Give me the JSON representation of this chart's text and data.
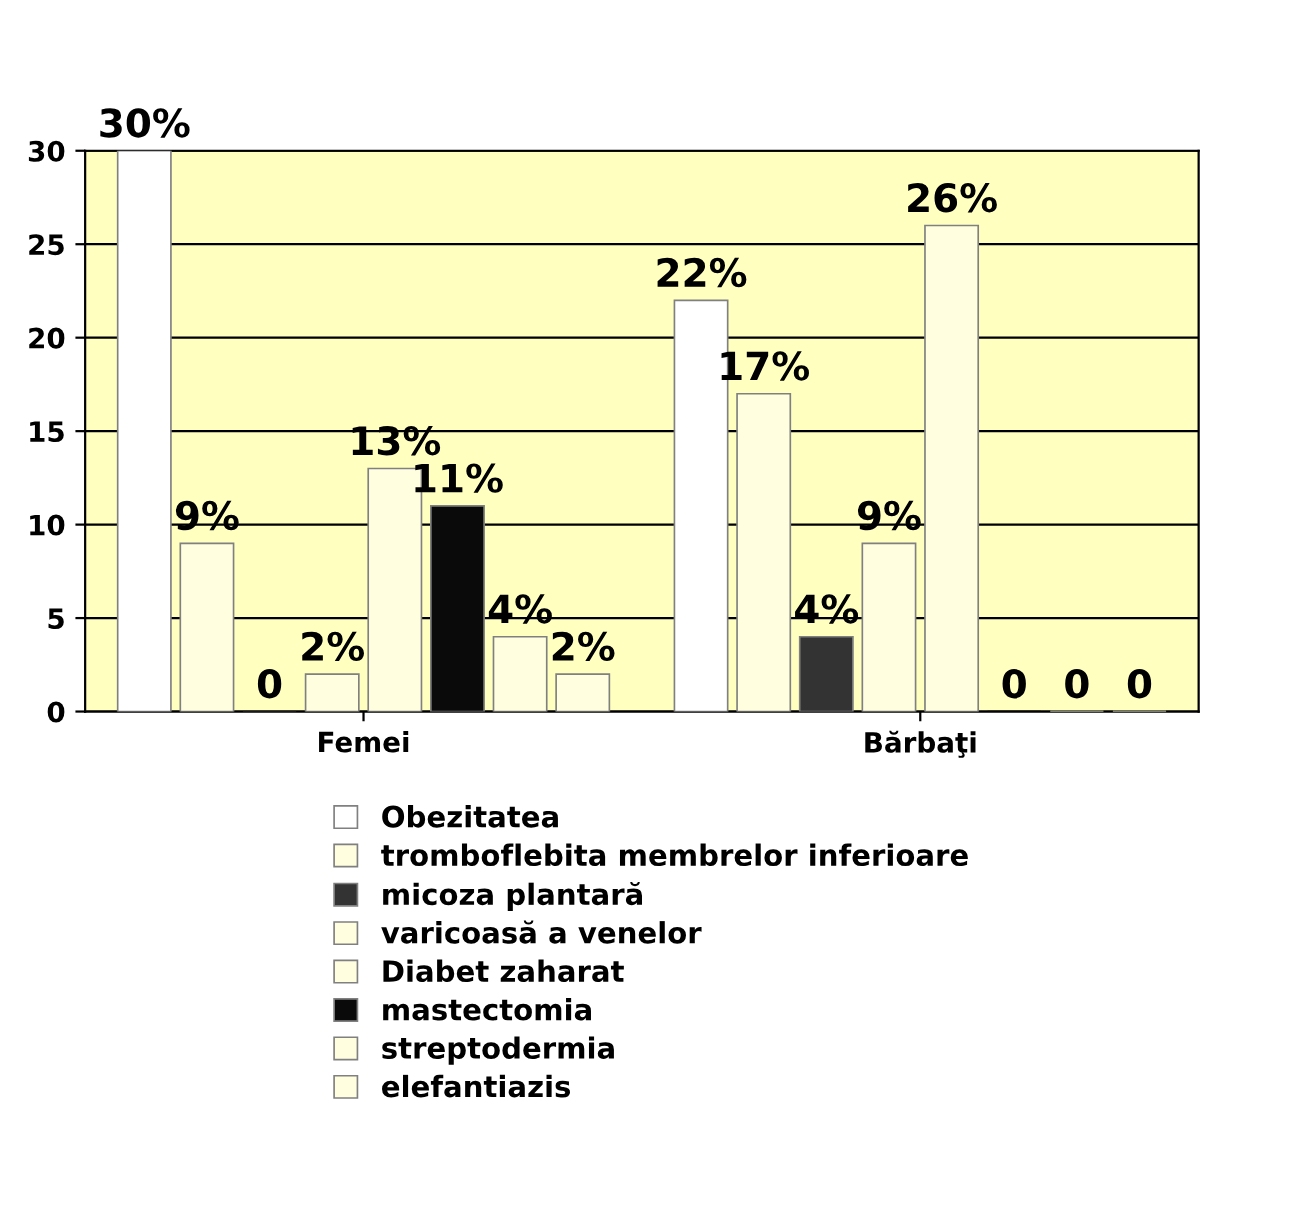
{
  "chart_data": {
    "type": "bar",
    "categories": [
      "Femei",
      "Bărbaţi"
    ],
    "series": [
      {
        "name": "Obezitatea",
        "color": "#ffffff",
        "values": [
          30,
          22
        ],
        "value_labels": [
          "30%",
          "22%"
        ]
      },
      {
        "name": "tromboflebita membrelor inferioare",
        "color": "#ffffe0",
        "values": [
          9,
          17
        ],
        "value_labels": [
          "9%",
          "17%"
        ]
      },
      {
        "name": "micoza plantară",
        "color": "#333333",
        "values": [
          0,
          4
        ],
        "value_labels": [
          "0",
          "4%"
        ]
      },
      {
        "name": "varicoasă a venelor",
        "color": "#ffffe0",
        "values": [
          2,
          9
        ],
        "value_labels": [
          "2%",
          "9%"
        ]
      },
      {
        "name": "Diabet zaharat",
        "color": "#ffffe0",
        "values": [
          13,
          26
        ],
        "value_labels": [
          "13%",
          "26%"
        ]
      },
      {
        "name": "mastectomia",
        "color": "#0a0a0a",
        "values": [
          11,
          0
        ],
        "value_labels": [
          "11%",
          "0"
        ]
      },
      {
        "name": "streptodermia",
        "color": "#ffffe0",
        "values": [
          4,
          0
        ],
        "value_labels": [
          "4%",
          "0"
        ]
      },
      {
        "name": "elefantiazis",
        "color": "#ffffe0",
        "values": [
          2,
          0
        ],
        "value_labels": [
          "2%",
          "0"
        ]
      }
    ],
    "ylim": [
      0,
      30
    ],
    "yticks": [
      0,
      5,
      10,
      15,
      20,
      25,
      30
    ],
    "grid": "y",
    "legend": "bottom"
  }
}
